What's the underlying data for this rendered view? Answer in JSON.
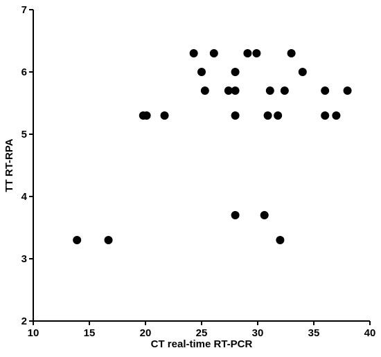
{
  "chart_data": {
    "type": "scatter",
    "x_label": "CT real-time RT-PCR",
    "y_label": "TT RT-RPA",
    "x": [
      13.9,
      16.7,
      19.8,
      20.1,
      21.7,
      24.3,
      25.0,
      25.3,
      26.1,
      27.4,
      28.0,
      28.0,
      28.0,
      28.0,
      29.1,
      29.9,
      30.6,
      30.9,
      31.1,
      31.8,
      32.0,
      32.4,
      33.0,
      34.0,
      36.0,
      36.0,
      37.0,
      38.0
    ],
    "values": [
      3.3,
      3.3,
      5.3,
      5.3,
      5.3,
      6.3,
      6.0,
      5.7,
      6.3,
      5.7,
      6.0,
      5.7,
      5.3,
      3.7,
      6.3,
      6.3,
      3.7,
      5.3,
      5.7,
      5.3,
      3.3,
      5.7,
      6.3,
      6.0,
      5.7,
      5.3,
      5.3,
      5.7
    ],
    "color": "#000000",
    "xlim": [
      10,
      40
    ],
    "xticks": [
      10,
      15,
      20,
      25,
      30,
      35,
      40
    ],
    "ylim": [
      2,
      7
    ],
    "yticks": [
      2,
      3,
      4,
      5,
      6,
      7
    ]
  }
}
